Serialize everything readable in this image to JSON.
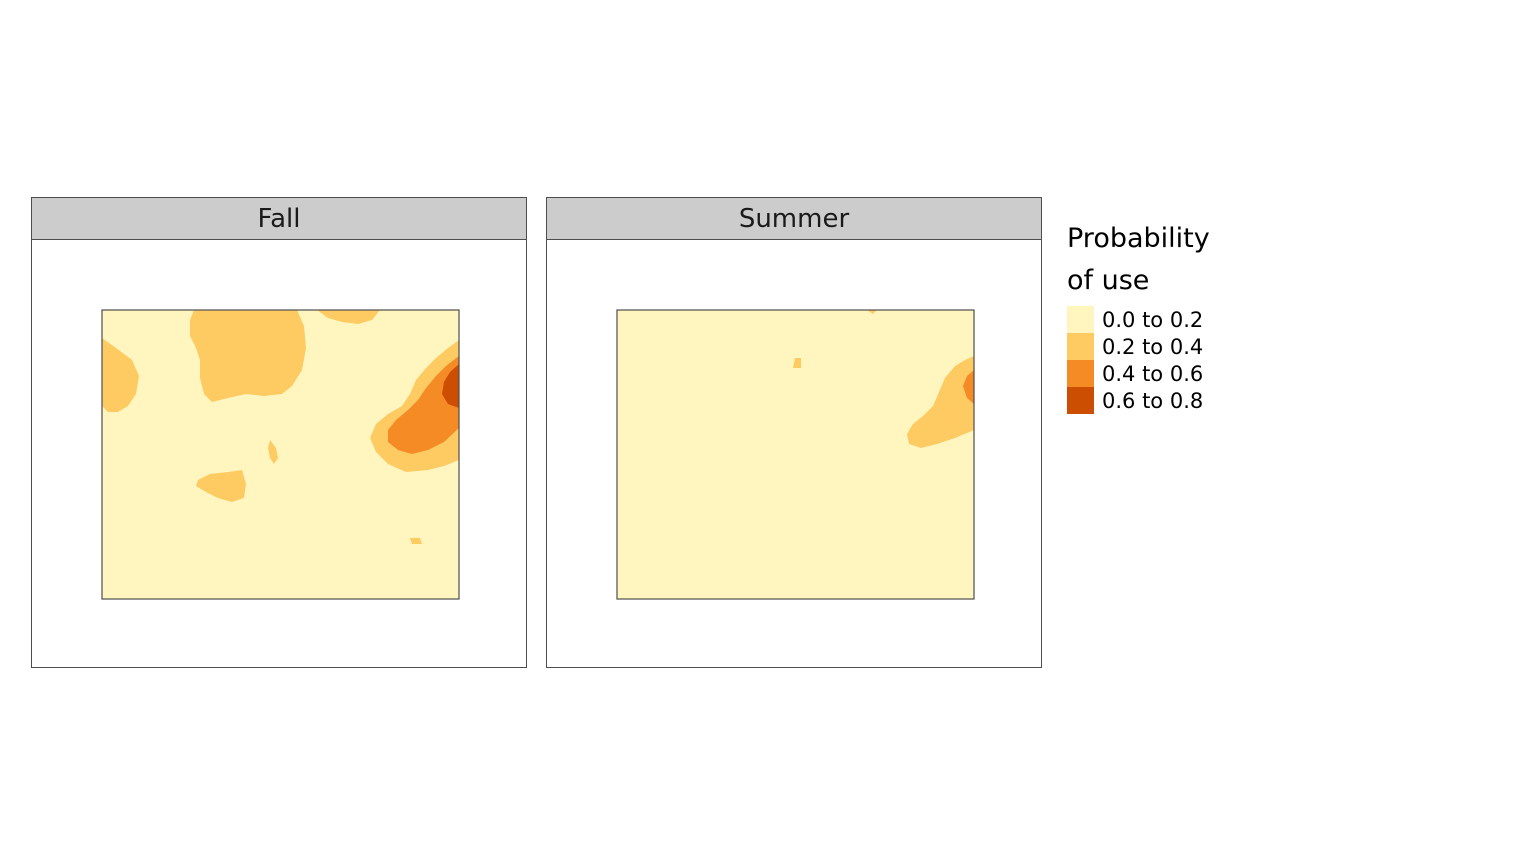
{
  "panels": [
    {
      "title": "Fall"
    },
    {
      "title": "Summer"
    }
  ],
  "legend": {
    "title_line1": "Probability",
    "title_line2": "of use",
    "items": [
      {
        "label": "0.0 to 0.2",
        "color": "#fff5bf"
      },
      {
        "label": "0.2 to 0.4",
        "color": "#fecb63"
      },
      {
        "label": "0.4 to 0.6",
        "color": "#f48b24"
      },
      {
        "label": "0.6 to 0.8",
        "color": "#cc4e02"
      }
    ]
  },
  "colors": {
    "strip_background": "#cccccc",
    "border": "#4d4d4d"
  }
}
